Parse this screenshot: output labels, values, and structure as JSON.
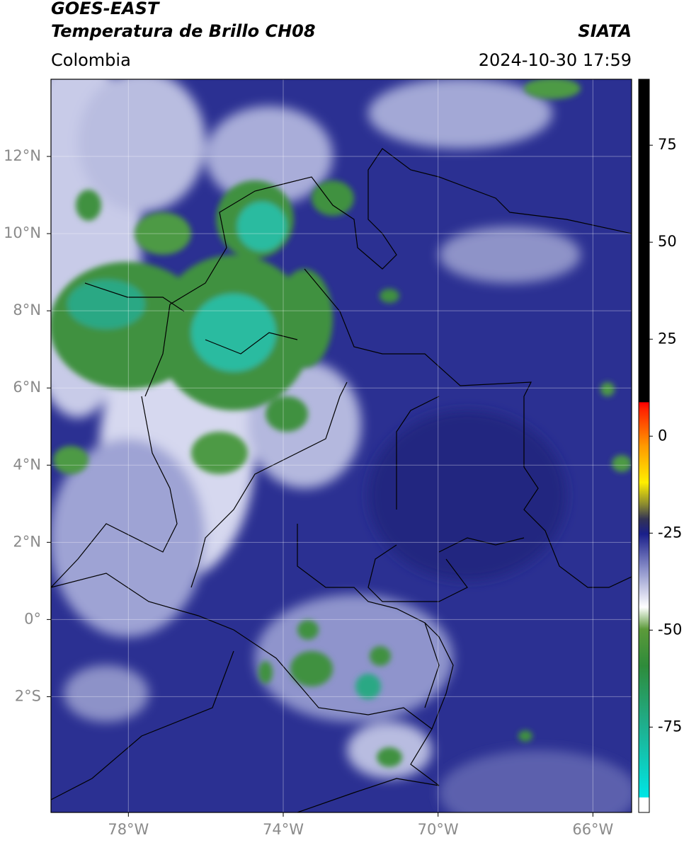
{
  "header": {
    "title": "GOES-EAST",
    "subtitle": "Temperatura de Brillo CH08",
    "source": "SIATA",
    "region": "Colombia",
    "timestamp": "2024-10-30 17:59"
  },
  "map": {
    "xlim": [
      -80,
      -65
    ],
    "ylim": [
      -5,
      14
    ],
    "xticks": [
      {
        "value": -78,
        "label": "78°W"
      },
      {
        "value": -74,
        "label": "74°W"
      },
      {
        "value": -70,
        "label": "70°W"
      },
      {
        "value": -66,
        "label": "66°W"
      }
    ],
    "yticks": [
      {
        "value": -2,
        "label": "2°S"
      },
      {
        "value": 0,
        "label": "0°"
      },
      {
        "value": 2,
        "label": "2°N"
      },
      {
        "value": 4,
        "label": "4°N"
      },
      {
        "value": 6,
        "label": "6°N"
      },
      {
        "value": 8,
        "label": "8°N"
      },
      {
        "value": 10,
        "label": "10°N"
      },
      {
        "value": 12,
        "label": "12°N"
      }
    ],
    "grid": true
  },
  "colorbar": {
    "lim": [
      -97,
      92
    ],
    "ticks": [
      -75,
      -50,
      -25,
      0,
      25,
      50,
      75
    ]
  }
}
